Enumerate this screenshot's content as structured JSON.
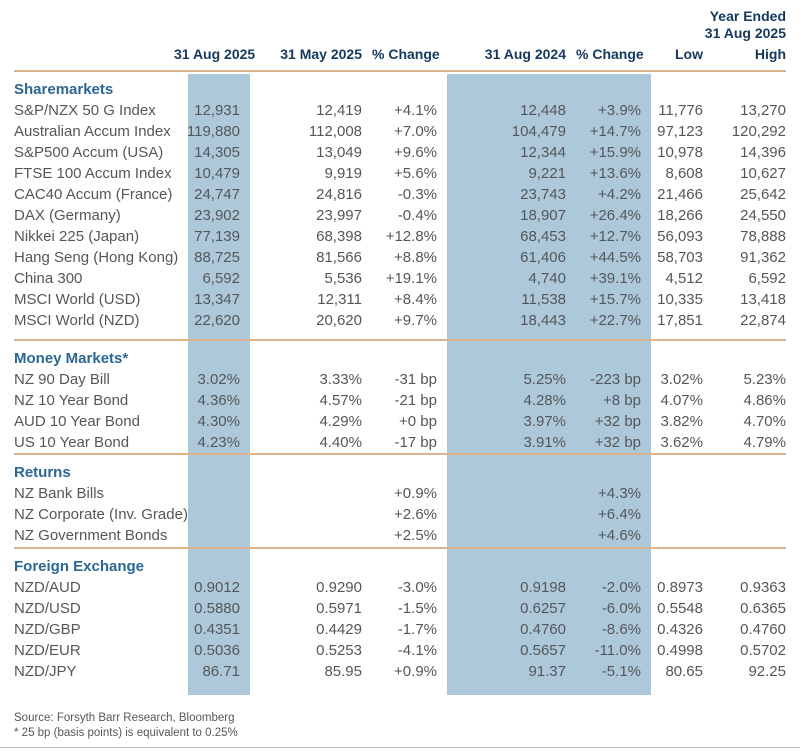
{
  "header": {
    "year_ended_line1": "Year Ended",
    "year_ended_line2": "31 Aug 2025",
    "columns": [
      "31 Aug 2025",
      "31 May 2025",
      "% Change",
      "31 Aug 2024",
      "% Change",
      "Low",
      "High"
    ]
  },
  "sections": [
    {
      "id": "sharemarkets",
      "title": "Sharemarkets",
      "rows": [
        {
          "label": "S&P/NZX 50 G Index",
          "values": [
            "12,931",
            "12,419",
            "+4.1%",
            "12,448",
            "+3.9%",
            "11,776",
            "13,270"
          ]
        },
        {
          "label": "Australian Accum Index",
          "values": [
            "119,880",
            "112,008",
            "+7.0%",
            "104,479",
            "+14.7%",
            "97,123",
            "120,292"
          ]
        },
        {
          "label": "S&P500 Accum (USA)",
          "values": [
            "14,305",
            "13,049",
            "+9.6%",
            "12,344",
            "+15.9%",
            "10,978",
            "14,396"
          ]
        },
        {
          "label": "FTSE 100 Accum Index",
          "values": [
            "10,479",
            "9,919",
            "+5.6%",
            "9,221",
            "+13.6%",
            "8,608",
            "10,627"
          ]
        },
        {
          "label": "CAC40 Accum (France)",
          "values": [
            "24,747",
            "24,816",
            "-0.3%",
            "23,743",
            "+4.2%",
            "21,466",
            "25,642"
          ]
        },
        {
          "label": "DAX (Germany)",
          "values": [
            "23,902",
            "23,997",
            "-0.4%",
            "18,907",
            "+26.4%",
            "18,266",
            "24,550"
          ]
        },
        {
          "label": "Nikkei 225 (Japan)",
          "values": [
            "77,139",
            "68,398",
            "+12.8%",
            "68,453",
            "+12.7%",
            "56,093",
            "78,888"
          ]
        },
        {
          "label": "Hang Seng (Hong Kong)",
          "values": [
            "88,725",
            "81,566",
            "+8.8%",
            "61,406",
            "+44.5%",
            "58,703",
            "91,362"
          ]
        },
        {
          "label": "China 300",
          "values": [
            "6,592",
            "5,536",
            "+19.1%",
            "4,740",
            "+39.1%",
            "4,512",
            "6,592"
          ]
        },
        {
          "label": "MSCI World (USD)",
          "values": [
            "13,347",
            "12,311",
            "+8.4%",
            "11,538",
            "+15.7%",
            "10,335",
            "13,418"
          ]
        },
        {
          "label": "MSCI World (NZD)",
          "values": [
            "22,620",
            "20,620",
            "+9.7%",
            "18,443",
            "+22.7%",
            "17,851",
            "22,874"
          ]
        }
      ]
    },
    {
      "id": "money-markets",
      "title": "Money Markets*",
      "rows": [
        {
          "label": "NZ 90 Day Bill",
          "values": [
            "3.02%",
            "3.33%",
            "-31 bp",
            "5.25%",
            "-223 bp",
            "3.02%",
            "5.23%"
          ]
        },
        {
          "label": "NZ 10 Year Bond",
          "values": [
            "4.36%",
            "4.57%",
            "-21 bp",
            "4.28%",
            "+8 bp",
            "4.07%",
            "4.86%"
          ]
        },
        {
          "label": "AUD 10 Year Bond",
          "values": [
            "4.30%",
            "4.29%",
            "+0 bp",
            "3.97%",
            "+32 bp",
            "3.82%",
            "4.70%"
          ]
        },
        {
          "label": "US 10 Year Bond",
          "values": [
            "4.23%",
            "4.40%",
            "-17 bp",
            "3.91%",
            "+32 bp",
            "3.62%",
            "4.79%"
          ]
        }
      ]
    },
    {
      "id": "returns",
      "title": "Returns",
      "rows": [
        {
          "label": "NZ Bank Bills",
          "values": [
            "",
            "",
            "+0.9%",
            "",
            "+4.3%",
            "",
            ""
          ]
        },
        {
          "label": "NZ Corporate (Inv. Grade)",
          "values": [
            "",
            "",
            "+2.6%",
            "",
            "+6.4%",
            "",
            ""
          ]
        },
        {
          "label": "NZ Government Bonds",
          "values": [
            "",
            "",
            "+2.5%",
            "",
            "+4.6%",
            "",
            ""
          ]
        }
      ]
    },
    {
      "id": "foreign-exchange",
      "title": "Foreign Exchange",
      "rows": [
        {
          "label": "NZD/AUD",
          "values": [
            "0.9012",
            "0.9290",
            "-3.0%",
            "0.9198",
            "-2.0%",
            "0.8973",
            "0.9363"
          ]
        },
        {
          "label": "NZD/USD",
          "values": [
            "0.5880",
            "0.5971",
            "-1.5%",
            "0.6257",
            "-6.0%",
            "0.5548",
            "0.6365"
          ]
        },
        {
          "label": "NZD/GBP",
          "values": [
            "0.4351",
            "0.4429",
            "-1.7%",
            "0.4760",
            "-8.6%",
            "0.4326",
            "0.4760"
          ]
        },
        {
          "label": "NZD/EUR",
          "values": [
            "0.5036",
            "0.5253",
            "-4.1%",
            "0.5657",
            "-11.0%",
            "0.4998",
            "0.5702"
          ]
        },
        {
          "label": "NZD/JPY",
          "values": [
            "86.71",
            "85.95",
            "+0.9%",
            "91.37",
            "-5.1%",
            "80.65",
            "92.25"
          ]
        }
      ]
    }
  ],
  "footer": {
    "source": "Source: Forsyth Barr Research, Bloomberg",
    "note": "* 25 bp (basis points) is equivalent to 0.25%"
  },
  "colors": {
    "navy": "#14395d",
    "sectionblue": "#2b6795",
    "textgray": "#54575a",
    "band": "#adc9d9",
    "tan": "#ddb28f",
    "bottomline": "#b9bbbd"
  }
}
